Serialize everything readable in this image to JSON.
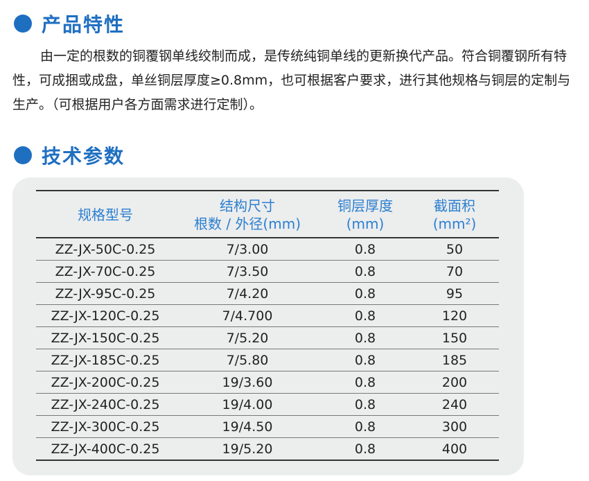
{
  "section1": {
    "title": "产品特性"
  },
  "description": "由一定的根数的铜覆钢单线绞制而成，是传统纯铜单线的更新换代产品。符合铜覆钢所有特性，可成捆或成盘，单丝铜层厚度≥0.8mm，也可根据客户要求，进行其他规格与铜层的定制与生产。（可根据用户各方面需求进行定制）。",
  "section2": {
    "title": "技术参数"
  },
  "table": {
    "headers": [
      {
        "line1": "规格型号",
        "line2": ""
      },
      {
        "line1": "结构尺寸",
        "line2": "根数 / 外径(mm)"
      },
      {
        "line1": "铜层厚度",
        "line2": "(mm)"
      },
      {
        "line1": "截面积",
        "line2": "(mm²)"
      }
    ],
    "rows": [
      [
        "ZZ-JX-50C-0.25",
        "7/3.00",
        "0.8",
        "50"
      ],
      [
        "ZZ-JX-70C-0.25",
        "7/3.50",
        "0.8",
        "70"
      ],
      [
        "ZZ-JX-95C-0.25",
        "7/4.20",
        "0.8",
        "95"
      ],
      [
        "ZZ-JX-120C-0.25",
        "7/4.700",
        "0.8",
        "120"
      ],
      [
        "ZZ-JX-150C-0.25",
        "7/5.20",
        "0.8",
        "150"
      ],
      [
        "ZZ-JX-185C-0.25",
        "7/5.80",
        "0.8",
        "185"
      ],
      [
        "ZZ-JX-200C-0.25",
        "19/3.60",
        "0.8",
        "200"
      ],
      [
        "ZZ-JX-240C-0.25",
        "19/4.00",
        "0.8",
        "240"
      ],
      [
        "ZZ-JX-300C-0.25",
        "19/4.50",
        "0.8",
        "300"
      ],
      [
        "ZZ-JX-400C-0.25",
        "19/5.20",
        "0.8",
        "400"
      ]
    ]
  },
  "colors": {
    "accent": "#1f6fc1",
    "header_text": "#2b7fd0",
    "card_bg": "#eceded"
  },
  "icons": {
    "section_marker": "blue-dot-icon"
  }
}
